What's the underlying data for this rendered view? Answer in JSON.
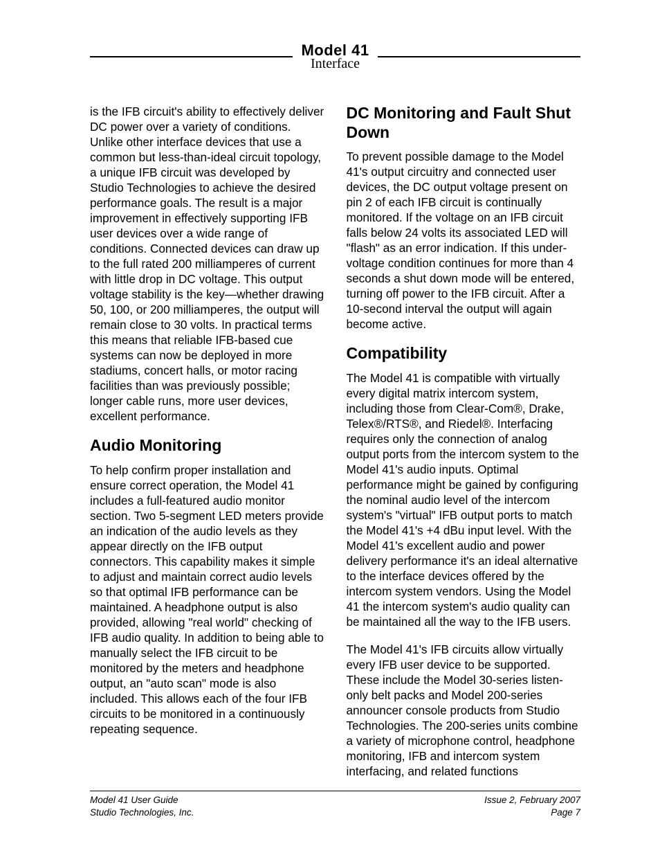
{
  "header": {
    "model": "Model 41",
    "subtitle": "Interface"
  },
  "left": {
    "p1": "is the IFB circuit's ability to effectively deliver DC power over a variety of conditions. Unlike other interface devices that use a common but less-than-ideal circuit topology, a unique IFB circuit was developed by Studio Technologies to achieve the desired performance goals. The result is a major improvement in effectively supporting IFB user devices over a wide range of conditions. Connected devices can draw up to the full rated 200 milliamperes of current with little drop in DC voltage. This output voltage stability is the key—whether drawing 50, 100, or 200 milliamperes, the output will remain close to 30 volts. In practical terms this means that reliable IFB-based cue systems can now be deployed in more stadiums, concert halls, or motor racing facilities than was previously possible; longer cable runs, more user devices, excellent performance.",
    "h2": "Audio Monitoring",
    "p2": "To help confirm proper installation and ensure correct operation, the Model 41 includes a full-featured audio monitor section. Two 5-segment LED meters provide an indication of the audio levels as they appear directly on the IFB output connectors. This capability makes it simple to adjust and maintain correct audio levels so that optimal IFB performance can be maintained. A headphone output is also provided, allowing \"real world\" checking of IFB audio quality. In addition to being able to manually select the IFB circuit to be monitored by the meters and headphone output, an \"auto scan\" mode is also included. This allows each of the four IFB circuits to be monitored in a continuously repeating sequence."
  },
  "right": {
    "h2a": "DC Monitoring and Fault Shut Down",
    "p1": "To prevent possible damage to the Model 41's output circuitry and connected user devices, the DC output voltage present on pin 2 of each IFB circuit is continually monitored. If the voltage on an IFB circuit falls below 24 volts its associated LED will \"flash\" as an error indication. If this under-voltage condition continues for more than 4 seconds a shut down mode will be entered, turning off power to the IFB circuit. After a 10-second interval the output will again become active.",
    "h2b": "Compatibility",
    "p2": "The Model 41 is compatible with virtually every digital matrix intercom system, including those from Clear-Com®, Drake, Telex®/RTS®, and Riedel®. Interfacing requires only the connection of analog output ports from the intercom system to the Model 41's audio inputs. Optimal performance might be gained by configuring the nominal audio level of the intercom system's \"virtual\" IFB output ports to match the Model 41's +4 dBu input level. With the Model 41's excellent audio and power delivery performance it's an ideal alternative to the interface devices offered by the intercom system vendors. Using the Model 41 the intercom system's audio quality can be maintained all the way to the IFB users.",
    "p3": "The Model 41's IFB circuits allow virtually every IFB user device to be supported. These include the Model 30-series listen-only belt packs and Model 200-series announcer console products from Studio Technologies. The 200-series units combine a variety of microphone control, headphone monitoring, IFB and intercom system interfacing, and related functions"
  },
  "footer": {
    "left1": "Model 41 User Guide",
    "left2": "Studio Technologies, Inc.",
    "right1": "Issue 2, February 2007",
    "right2": "Page 7"
  }
}
